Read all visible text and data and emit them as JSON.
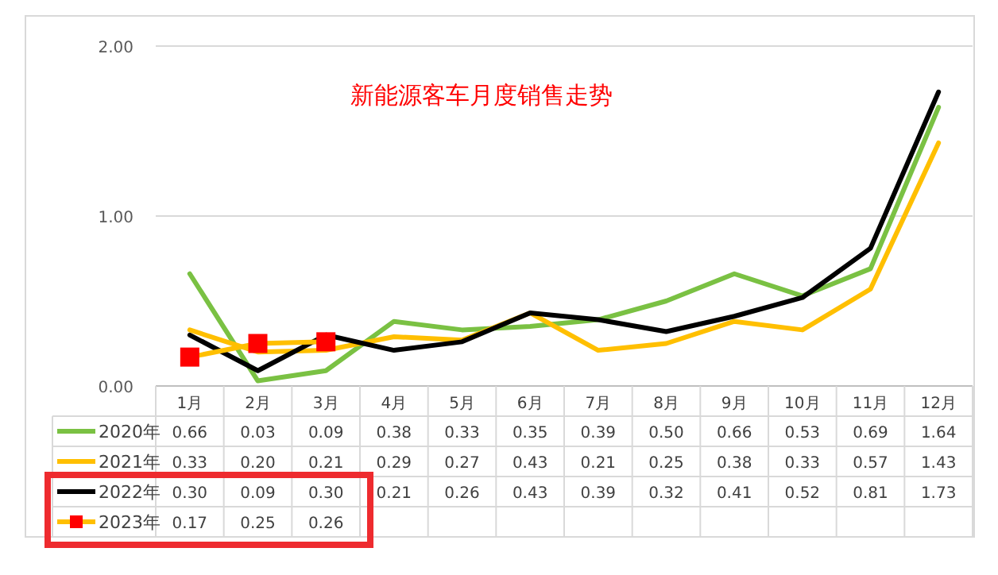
{
  "chart_data": {
    "type": "line",
    "title": "新能源客车月度销售走势",
    "categories": [
      "1月",
      "2月",
      "3月",
      "4月",
      "5月",
      "6月",
      "7月",
      "8月",
      "9月",
      "10月",
      "11月",
      "12月"
    ],
    "series": [
      {
        "name": "2020年",
        "color": "#7ac143",
        "values": [
          0.66,
          0.03,
          0.09,
          0.38,
          0.33,
          0.35,
          0.39,
          0.5,
          0.66,
          0.53,
          0.69,
          1.64
        ],
        "value_labels": [
          "0.66",
          "0.03",
          "0.09",
          "0.38",
          "0.33",
          "0.35",
          "0.39",
          "0.50",
          "0.66",
          "0.53",
          "0.69",
          "1.64"
        ]
      },
      {
        "name": "2021年",
        "color": "#ffbf00",
        "values": [
          0.33,
          0.2,
          0.21,
          0.29,
          0.27,
          0.43,
          0.21,
          0.25,
          0.38,
          0.33,
          0.57,
          1.43
        ],
        "value_labels": [
          "0.33",
          "0.20",
          "0.21",
          "0.29",
          "0.27",
          "0.43",
          "0.21",
          "0.25",
          "0.38",
          "0.33",
          "0.57",
          "1.43"
        ]
      },
      {
        "name": "2022年",
        "color": "#000000",
        "values": [
          0.3,
          0.09,
          0.3,
          0.21,
          0.26,
          0.43,
          0.39,
          0.32,
          0.41,
          0.52,
          0.81,
          1.73
        ],
        "value_labels": [
          "0.30",
          "0.09",
          "0.30",
          "0.21",
          "0.26",
          "0.43",
          "0.39",
          "0.32",
          "0.41",
          "0.52",
          "0.81",
          "1.73"
        ]
      },
      {
        "name": "2023年",
        "color": "#ffbf00",
        "marker": "square",
        "colors": [
          "#ff0000",
          "#ff0000",
          "#ff0000",
          null,
          null,
          null,
          null,
          null,
          null,
          null,
          null,
          null
        ],
        "values": [
          0.17,
          0.25,
          0.26,
          null,
          null,
          null,
          null,
          null,
          null,
          null,
          null,
          null
        ],
        "value_labels": [
          "0.17",
          "0.25",
          "0.26",
          null,
          null,
          null,
          null,
          null,
          null,
          null,
          null,
          null
        ]
      }
    ],
    "ylim": [
      0,
      2
    ],
    "yticks": [
      {
        "value": 0,
        "label": "0.00"
      },
      {
        "value": 1,
        "label": "1.00"
      },
      {
        "value": 2,
        "label": "2.00"
      }
    ],
    "grid": "y",
    "legend": "bottom",
    "line_style": "solid"
  }
}
